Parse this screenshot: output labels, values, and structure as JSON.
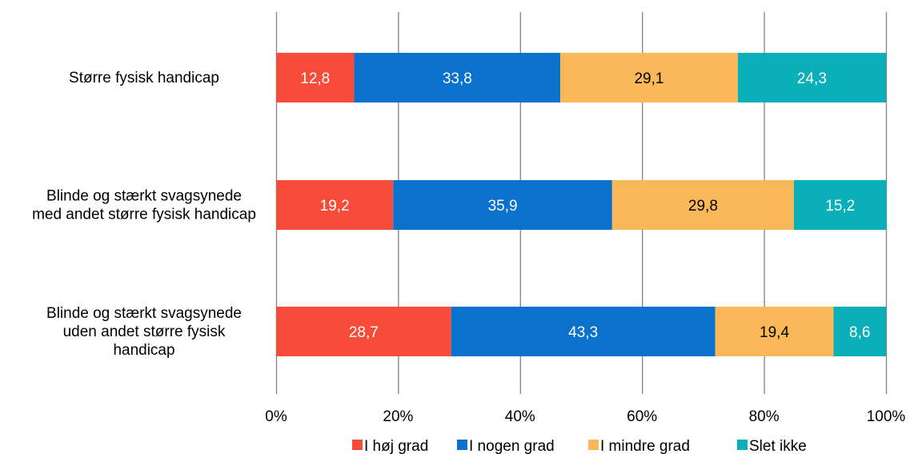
{
  "chart_data": {
    "type": "bar",
    "orientation": "horizontal",
    "stacked": "percent",
    "categories": [
      [
        "Større fysisk handicap"
      ],
      [
        "Blinde og stærkt svagsynede",
        "med andet større fysisk handicap"
      ],
      [
        "Blinde og stærkt svagsynede",
        "uden andet større fysisk",
        "handicap"
      ]
    ],
    "series": [
      {
        "name": "I høj grad",
        "color": "#f84c3b",
        "label_color": "#ffffff",
        "values": [
          12.8,
          19.2,
          28.7
        ],
        "labels": [
          "12,8",
          "19,2",
          "28,7"
        ]
      },
      {
        "name": "I nogen grad",
        "color": "#0a72cc",
        "label_color": "#ffffff",
        "values": [
          33.8,
          35.9,
          43.3
        ],
        "labels": [
          "33,8",
          "35,9",
          "43,3"
        ]
      },
      {
        "name": "I mindre grad",
        "color": "#fbb859",
        "label_color": "#000000",
        "values": [
          29.1,
          29.8,
          19.4
        ],
        "labels": [
          "29,1",
          "29,8",
          "19,4"
        ]
      },
      {
        "name": "Slet ikke",
        "color": "#0aafb9",
        "label_color": "#ffffff",
        "values": [
          24.3,
          15.2,
          8.6
        ],
        "labels": [
          "24,3",
          "15,2",
          "8,6"
        ]
      }
    ],
    "xlim": [
      0,
      100
    ],
    "x_ticks": [
      "0%",
      "20%",
      "40%",
      "60%",
      "80%",
      "100%"
    ],
    "grid": "vertical",
    "legend_position": "bottom",
    "gridline_color": "#808080"
  }
}
